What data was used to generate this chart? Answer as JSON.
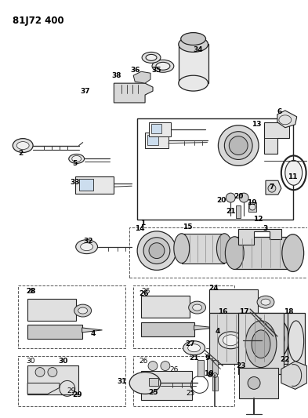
{
  "title": "81J72 400",
  "bg": "#ffffff",
  "fg": "#222222",
  "figsize": [
    3.93,
    5.33
  ],
  "dpi": 100
}
